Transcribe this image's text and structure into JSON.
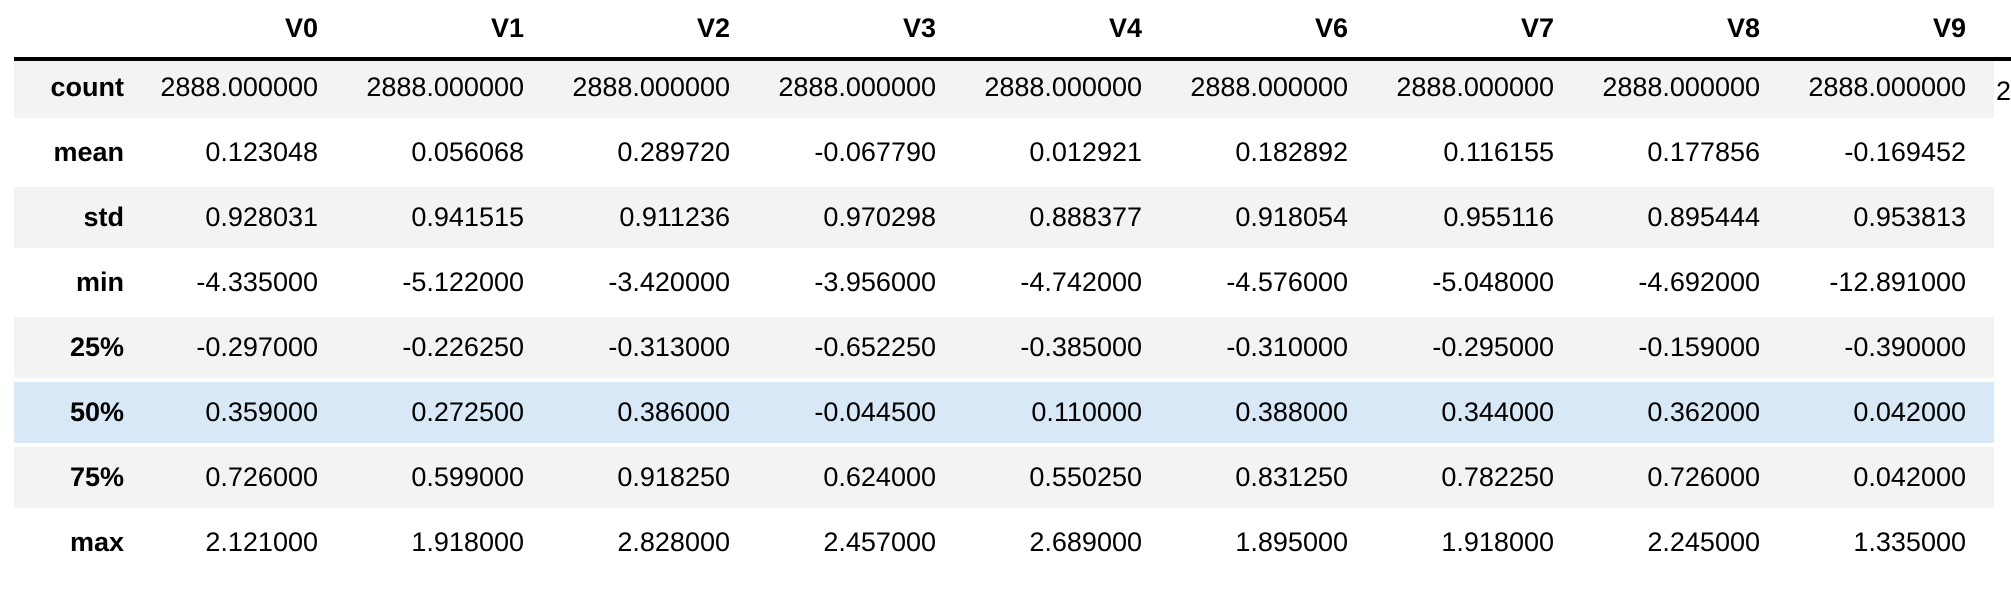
{
  "colors": {
    "stripe_bg": "#f3f3f3",
    "highlight_bg": "#d8e8f6",
    "header_rule": "#000000",
    "text": "#000000"
  },
  "chart_data": {
    "type": "table",
    "title": "",
    "description": "Summary statistics table (pandas describe style), horizontally truncated at right edge",
    "columns": [
      "V0",
      "V1",
      "V2",
      "V3",
      "V4",
      "V6",
      "V7",
      "V8",
      "V9"
    ],
    "row_labels": [
      "count",
      "mean",
      "std",
      "min",
      "25%",
      "50%",
      "75%",
      "max"
    ],
    "rows": [
      {
        "label": "count",
        "values": [
          "2888.000000",
          "2888.000000",
          "2888.000000",
          "2888.000000",
          "2888.000000",
          "2888.000000",
          "2888.000000",
          "2888.000000",
          "2888.000000"
        ]
      },
      {
        "label": "mean",
        "values": [
          "0.123048",
          "0.056068",
          "0.289720",
          "-0.067790",
          "0.012921",
          "0.182892",
          "0.116155",
          "0.177856",
          "-0.169452"
        ]
      },
      {
        "label": "std",
        "values": [
          "0.928031",
          "0.941515",
          "0.911236",
          "0.970298",
          "0.888377",
          "0.918054",
          "0.955116",
          "0.895444",
          "0.953813"
        ]
      },
      {
        "label": "min",
        "values": [
          "-4.335000",
          "-5.122000",
          "-3.420000",
          "-3.956000",
          "-4.742000",
          "-4.576000",
          "-5.048000",
          "-4.692000",
          "-12.891000"
        ]
      },
      {
        "label": "25%",
        "values": [
          "-0.297000",
          "-0.226250",
          "-0.313000",
          "-0.652250",
          "-0.385000",
          "-0.310000",
          "-0.295000",
          "-0.159000",
          "-0.390000"
        ]
      },
      {
        "label": "50%",
        "values": [
          "0.359000",
          "0.272500",
          "0.386000",
          "-0.044500",
          "0.110000",
          "0.388000",
          "0.344000",
          "0.362000",
          "0.042000"
        ]
      },
      {
        "label": "75%",
        "values": [
          "0.726000",
          "0.599000",
          "0.918250",
          "0.624000",
          "0.550250",
          "0.831250",
          "0.782250",
          "0.726000",
          "0.042000"
        ]
      },
      {
        "label": "max",
        "values": [
          "2.121000",
          "1.918000",
          "2.828000",
          "2.457000",
          "2.689000",
          "1.895000",
          "1.918000",
          "2.245000",
          "1.335000"
        ]
      }
    ],
    "highlighted_row": "50%",
    "truncated_next_column_fragment": "2",
    "layout": {
      "row_striping": "alternating from first data row",
      "header_rule": "thick black line under column headers",
      "alignment": "right"
    }
  }
}
